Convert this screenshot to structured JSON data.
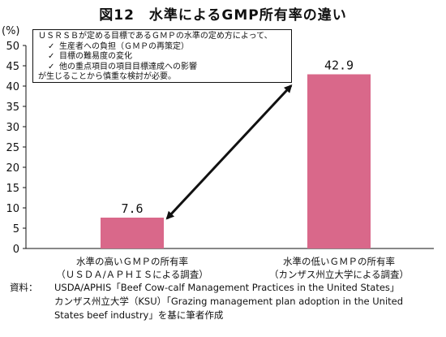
{
  "title": "図12　水準によるGMP所有率の違い",
  "note": {
    "intro": "ＵＳＲＳＢが定める目標であるＧＭＰの水準の定め方によって、",
    "check_mark": "✓",
    "items": [
      "生産者への負担（ＧＭＰの再策定）",
      "目標の難易度の変化",
      "他の重点項目の項目目標達成への影響"
    ],
    "outro": "が生じることから慎重な検討が必要。"
  },
  "source": {
    "label": "資料：",
    "lines": [
      "USDA/APHIS「Beef Cow-calf Management Practices in the United States」",
      "カンザス州立大学（KSU）「Grazing management plan adoption in the United",
      "States beef industry」を基に筆者作成"
    ]
  },
  "chart_data": {
    "type": "bar",
    "ylabel": "(%)",
    "ylim": [
      0,
      50
    ],
    "yticks": [
      0,
      5,
      10,
      15,
      20,
      25,
      30,
      35,
      40,
      45,
      50
    ],
    "categories": [
      [
        "水準の高いＧＭＰの所有率",
        "（ＵＳＤＡ/ＡＰＨＩＳによる調査）"
      ],
      [
        "水準の低いＧＭＰの所有率",
        "（カンザス州立大学による調査）"
      ]
    ],
    "values": [
      7.6,
      42.9
    ],
    "data_labels": [
      "7.6",
      "42.9"
    ],
    "bar_color": "#d9688a",
    "arrow_color": "#111111",
    "grid": false
  }
}
